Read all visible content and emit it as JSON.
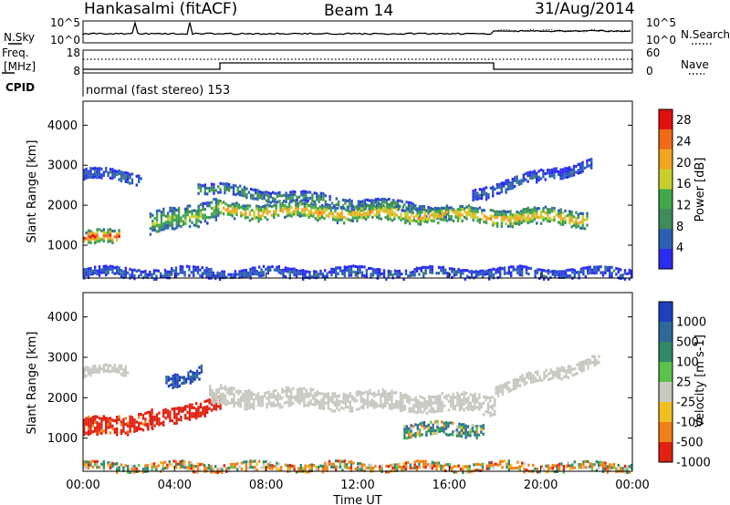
{
  "header": {
    "station": "Hankasalmi (fitACF)",
    "beam": "Beam 14",
    "date": "31/Aug/2014"
  },
  "status_panels": {
    "nsky_label": "N.Sky",
    "nsearch_label": "N.Search",
    "freq_label_1": "Freq.",
    "freq_label_2": "[MHz]",
    "nave_label": "Nave",
    "cpid_label": "CPID",
    "cpid_value": "normal (fast stereo) 153",
    "noise_ticks_left": [
      "10^5",
      "10^0"
    ],
    "noise_ticks_right": [
      "10^5",
      "10^0"
    ],
    "freq_ticks_left": [
      "18",
      "8"
    ],
    "nave_ticks_right": [
      "60",
      "0"
    ]
  },
  "chart_data": [
    {
      "type": "heatmap",
      "panel": "power",
      "xlabel": "",
      "ylabel": "Slant Range [km]",
      "x_unit": "hours UT",
      "xlim": [
        0,
        24
      ],
      "ylim": [
        180,
        4600
      ],
      "yticks": [
        "1000",
        "2000",
        "3000",
        "4000"
      ],
      "colorbar": {
        "label": "Power [dB]",
        "range": [
          0,
          30
        ],
        "ticks": [
          "4",
          "8",
          "12",
          "16",
          "20",
          "24",
          "28"
        ],
        "colors": [
          "#2a2cf0",
          "#2b5fb4",
          "#3f8d5a",
          "#3ea84a",
          "#c7cf2e",
          "#f1a520",
          "#f06a18",
          "#e01010"
        ]
      },
      "echo_bands": [
        {
          "t": [
            0.0,
            2.5
          ],
          "center_km": [
            2800,
            2700
          ],
          "width_km": 200,
          "level_db": 7
        },
        {
          "t": [
            0.0,
            1.6
          ],
          "center_km": [
            1150,
            1300
          ],
          "width_km": 250,
          "level_db": 27
        },
        {
          "t": [
            2.9,
            6.0
          ],
          "center_km": [
            1500,
            2000
          ],
          "width_km": 420,
          "level_db": 15
        },
        {
          "t": [
            5.0,
            16.0
          ],
          "center_km": [
            2450,
            1850
          ],
          "width_km": 200,
          "level_db": 11
        },
        {
          "t": [
            6.0,
            22.0
          ],
          "center_km": [
            1900,
            1700
          ],
          "width_km": 300,
          "level_db": 22
        },
        {
          "t": [
            17.0,
            22.2
          ],
          "center_km": [
            2300,
            3050
          ],
          "width_km": 220,
          "level_db": 6
        },
        {
          "t": [
            0.0,
            24.0
          ],
          "center_km": [
            330,
            330
          ],
          "width_km": 180,
          "level_db": 6
        }
      ]
    },
    {
      "type": "heatmap",
      "panel": "velocity",
      "xlabel": "Time UT",
      "ylabel": "Slant Range [km]",
      "x_unit": "hours UT",
      "xlim": [
        0,
        24
      ],
      "ylim": [
        180,
        4600
      ],
      "yticks": [
        "1000",
        "2000",
        "3000",
        "4000"
      ],
      "xticks": [
        "00:00",
        "04:00",
        "08:00",
        "12:00",
        "16:00",
        "20:00",
        "00:00"
      ],
      "colorbar": {
        "label": "Velocity [m s-1]",
        "ticks": [
          "1000",
          "500",
          "100",
          "25",
          "-25",
          "-100",
          "-500",
          "-1000"
        ],
        "colors": [
          "#1f3fbf",
          "#2d6a9a",
          "#2f8a66",
          "#58c24a",
          "#c8c8c0",
          "#f0c020",
          "#f08018",
          "#e02010"
        ]
      },
      "echo_bands": [
        {
          "t": [
            0.0,
            2.0
          ],
          "center_km": [
            2650,
            2700
          ],
          "width_km": 180,
          "level_m_s": 0
        },
        {
          "t": [
            0.0,
            3.0
          ],
          "center_km": [
            1250,
            1500
          ],
          "width_km": 350,
          "level_m_s": -400
        },
        {
          "t": [
            2.8,
            6.0
          ],
          "center_km": [
            1350,
            1950
          ],
          "width_km": 300,
          "level_m_s": -600
        },
        {
          "t": [
            3.6,
            5.2
          ],
          "center_km": [
            2400,
            2700
          ],
          "width_km": 250,
          "level_m_s": 800
        },
        {
          "t": [
            5.5,
            18.0
          ],
          "center_km": [
            2050,
            1850
          ],
          "width_km": 350,
          "level_m_s": 0
        },
        {
          "t": [
            18.0,
            22.5
          ],
          "center_km": [
            2200,
            2950
          ],
          "width_km": 220,
          "level_m_s": 0
        },
        {
          "t": [
            14.0,
            17.5
          ],
          "center_km": [
            1200,
            1250
          ],
          "width_km": 250,
          "level_m_s": 150
        },
        {
          "t": [
            0.0,
            24.0
          ],
          "center_km": [
            300,
            300
          ],
          "width_km": 170,
          "level_m_s": -60
        }
      ]
    }
  ]
}
